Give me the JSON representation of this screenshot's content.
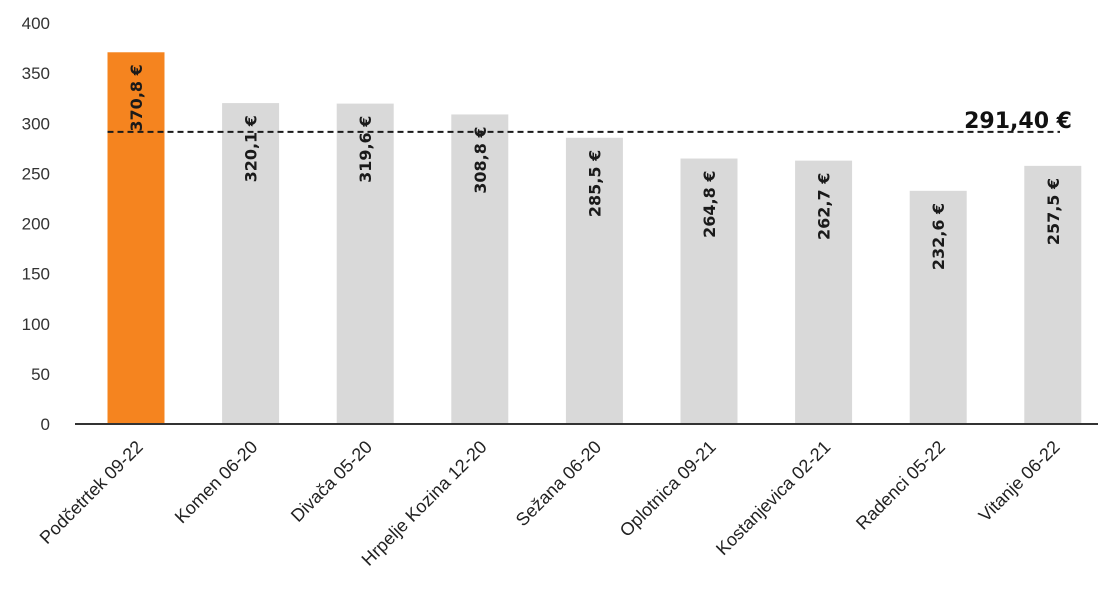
{
  "chart_data": {
    "type": "bar",
    "categories": [
      "Podčetrtek 09-22",
      "Komen 06-20",
      "Divača 05-20",
      "Hrpelje Kozina 12-20",
      "Sežana 06-20",
      "Oplotnica 09-21",
      "Kostanjevica 02-21",
      "Radenci 05-22",
      "Vitanje 06-22"
    ],
    "values": [
      370.8,
      320.1,
      319.6,
      308.8,
      285.5,
      264.8,
      262.7,
      232.6,
      257.5
    ],
    "value_labels": [
      "370,8 €",
      "320,1 €",
      "319,6 €",
      "308,8 €",
      "285,5 €",
      "264,8 €",
      "262,7 €",
      "232,6 €",
      "257,5 €"
    ],
    "yticks": [
      "0",
      "50",
      "100",
      "150",
      "200",
      "250",
      "300",
      "350",
      "400"
    ],
    "ylim": [
      0,
      400
    ],
    "average": 291.4,
    "average_label": "291,40 €",
    "highlight_index": 0,
    "colors": {
      "highlight": "#F5841F",
      "bar": "#D9D9D9",
      "axis": "#333333",
      "average_line": "#1a1a1a"
    },
    "title": "",
    "xlabel": "",
    "ylabel": "",
    "grid": false,
    "legend": "none"
  }
}
